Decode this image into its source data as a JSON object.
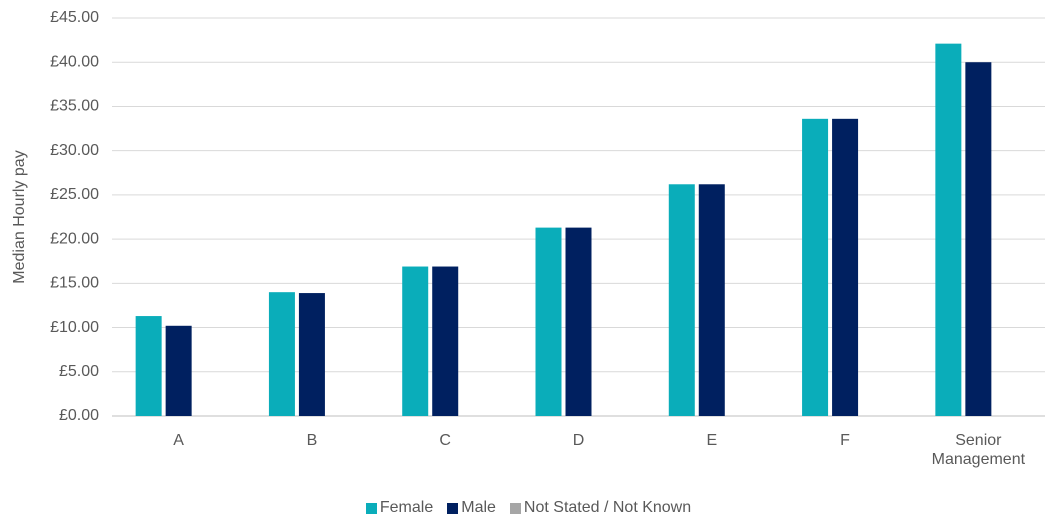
{
  "chart_data": {
    "type": "bar",
    "y_label": "Median Hourly pay",
    "categories": [
      "A",
      "B",
      "C",
      "D",
      "E",
      "F",
      "Senior Management"
    ],
    "series": [
      {
        "name": "Female",
        "color": "#0aadba",
        "values": [
          11.3,
          14.0,
          16.9,
          21.3,
          26.2,
          33.6,
          42.1
        ]
      },
      {
        "name": "Male",
        "color": "#002060",
        "values": [
          10.2,
          13.9,
          16.9,
          21.3,
          26.2,
          33.6,
          40.0
        ]
      },
      {
        "name": "Not Stated / Not Known",
        "color": "#a6a6a6",
        "values": [
          null,
          null,
          null,
          null,
          null,
          null,
          null
        ]
      }
    ],
    "ylim": [
      0,
      45
    ],
    "yticks": [
      {
        "value": 0,
        "label": "£0.00"
      },
      {
        "value": 5,
        "label": "£5.00"
      },
      {
        "value": 10,
        "label": "£10.00"
      },
      {
        "value": 15,
        "label": "£15.00"
      },
      {
        "value": 20,
        "label": "£20.00"
      },
      {
        "value": 25,
        "label": "£25.00"
      },
      {
        "value": 30,
        "label": "£30.00"
      },
      {
        "value": 35,
        "label": "£35.00"
      },
      {
        "value": 40,
        "label": "£40.00"
      },
      {
        "value": 45,
        "label": "£45.00"
      }
    ],
    "grid": true,
    "legend": "bottom"
  }
}
